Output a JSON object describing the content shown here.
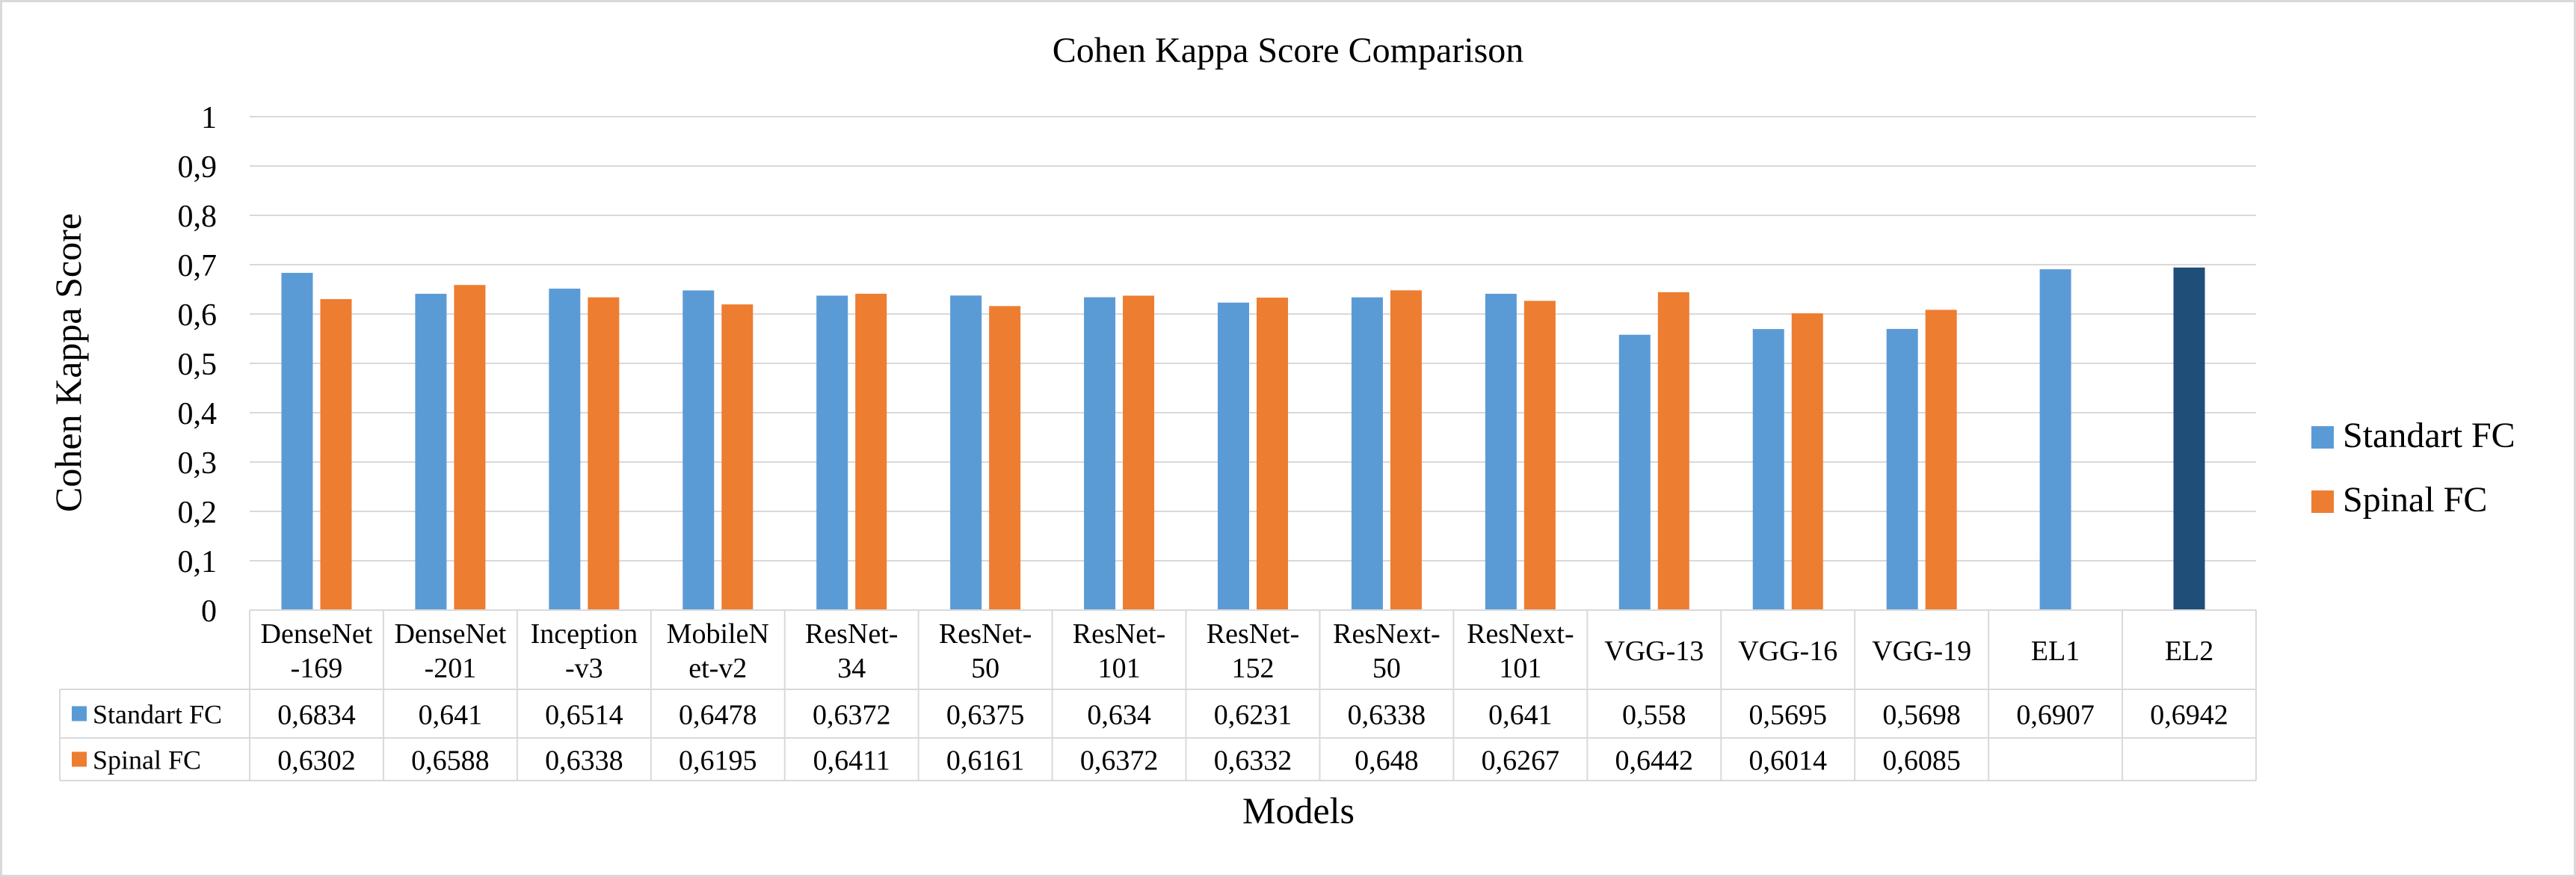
{
  "chart_data": {
    "type": "bar",
    "title": "Cohen Kappa Score Comparison",
    "xlabel": "Models",
    "ylabel": "Cohen Kappa Score",
    "ylim": [
      0,
      1
    ],
    "yticks": [
      "0",
      "0,1",
      "0,2",
      "0,3",
      "0,4",
      "0,5",
      "0,6",
      "0,7",
      "0,8",
      "0,9",
      "1"
    ],
    "grid": true,
    "legend_position": "right",
    "categories": [
      [
        "DenseNet",
        "-169"
      ],
      [
        "DenseNet",
        "-201"
      ],
      [
        "Inception",
        "-v3"
      ],
      [
        "MobileN",
        "et-v2"
      ],
      [
        "ResNet-",
        "34"
      ],
      [
        "ResNet-",
        "50"
      ],
      [
        "ResNet-",
        "101"
      ],
      [
        "ResNet-",
        "152"
      ],
      [
        "ResNext-",
        "50"
      ],
      [
        "ResNext-",
        "101"
      ],
      [
        "VGG-13"
      ],
      [
        "VGG-16"
      ],
      [
        "VGG-19"
      ],
      [
        "EL1"
      ],
      [
        "EL2"
      ]
    ],
    "series": [
      {
        "name": "Standart FC",
        "color": "#5b9bd5",
        "values": [
          0.6834,
          0.641,
          0.6514,
          0.6478,
          0.6372,
          0.6375,
          0.634,
          0.6231,
          0.6338,
          0.641,
          0.558,
          0.5695,
          0.5698,
          0.6907,
          0.6942
        ],
        "labels": [
          "0,6834",
          "0,641",
          "0,6514",
          "0,6478",
          "0,6372",
          "0,6375",
          "0,634",
          "0,6231",
          "0,6338",
          "0,641",
          "0,558",
          "0,5695",
          "0,5698",
          "0,6907",
          "0,6942"
        ]
      },
      {
        "name": "Spinal FC",
        "color": "#ed7d31",
        "values": [
          0.6302,
          0.6588,
          0.6338,
          0.6195,
          0.6411,
          0.6161,
          0.6372,
          0.6332,
          0.648,
          0.6267,
          0.6442,
          0.6014,
          0.6085,
          null,
          null
        ],
        "labels": [
          "0,6302",
          "0,6588",
          "0,6338",
          "0,6195",
          "0,6411",
          "0,6161",
          "0,6372",
          "0,6332",
          "0,648",
          "0,6267",
          "0,6442",
          "0,6014",
          "0,6085",
          "",
          ""
        ]
      }
    ],
    "highlight": {
      "category_index": 14,
      "color": "#1f4e79"
    }
  }
}
